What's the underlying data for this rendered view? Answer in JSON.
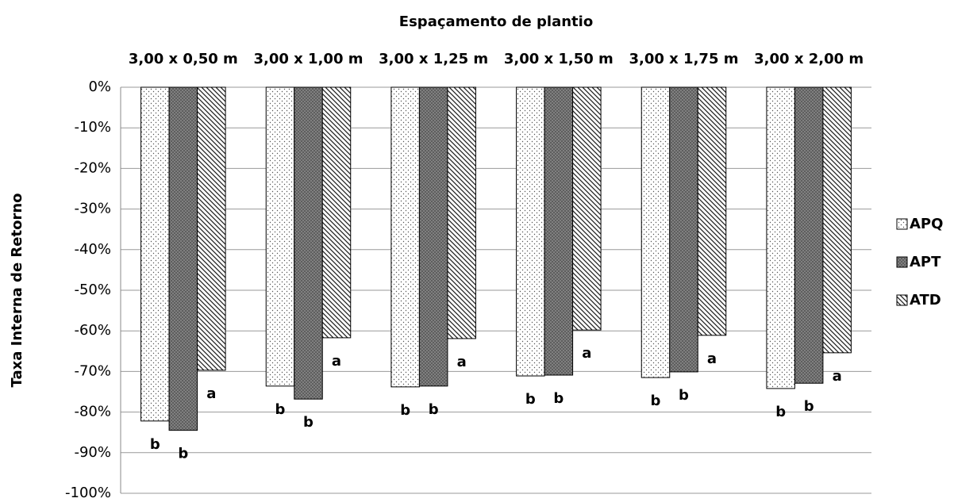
{
  "chart_data": {
    "type": "bar",
    "title": "Espaçamento de plantio",
    "y_label": "Taxa Interna de Retorno",
    "categories": [
      "3,00 x 0,50 m",
      "3,00 x 1,00 m",
      "3,00 x 1,25 m",
      "3,00 x 1,50 m",
      "3,00 x 1,75 m",
      "3,00 x 2,00 m"
    ],
    "series": [
      {
        "name": "APQ",
        "pattern": "dots",
        "values": [
          -82.2,
          -73.6,
          -73.8,
          -71.1,
          -71.5,
          -74.2
        ],
        "annotations": [
          "b",
          "b",
          "b",
          "b",
          "b",
          "b"
        ]
      },
      {
        "name": "APT",
        "pattern": "cross",
        "values": [
          -84.5,
          -76.8,
          -73.6,
          -70.9,
          -70.1,
          -72.9
        ],
        "annotations": [
          "b",
          "b",
          "b",
          "b",
          "b",
          "b"
        ]
      },
      {
        "name": "ATD",
        "pattern": "diag",
        "values": [
          -69.7,
          -61.7,
          -61.9,
          -59.8,
          -61.1,
          -65.4
        ],
        "annotations": [
          "a",
          "a",
          "a",
          "a",
          "a",
          "a"
        ]
      }
    ],
    "ylim": [
      -100,
      0
    ],
    "yticks": [
      {
        "value": 0,
        "label": "0%"
      },
      {
        "value": -10,
        "label": "-10%"
      },
      {
        "value": -20,
        "label": "-20%"
      },
      {
        "value": -30,
        "label": "-30%"
      },
      {
        "value": -40,
        "label": "-40%"
      },
      {
        "value": -50,
        "label": "-50%"
      },
      {
        "value": -60,
        "label": "-60%"
      },
      {
        "value": -70,
        "label": "-70%"
      },
      {
        "value": -80,
        "label": "-80%"
      },
      {
        "value": -90,
        "label": "-90%"
      },
      {
        "value": -100,
        "label": "-100%"
      }
    ],
    "grid": true,
    "legend": "right"
  }
}
